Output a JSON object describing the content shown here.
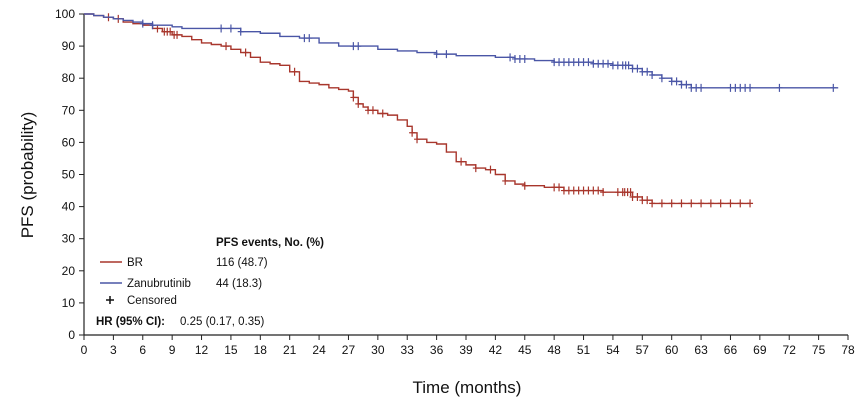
{
  "chart_data": {
    "type": "line",
    "title": "",
    "xlabel": "Time (months)",
    "ylabel": "PFS (probability)",
    "xlim": [
      0,
      78
    ],
    "ylim": [
      0,
      100
    ],
    "x_ticks": [
      0,
      3,
      6,
      9,
      12,
      15,
      18,
      21,
      24,
      27,
      30,
      33,
      36,
      39,
      42,
      45,
      48,
      51,
      54,
      57,
      60,
      63,
      66,
      69,
      72,
      75,
      78
    ],
    "y_ticks": [
      0,
      10,
      20,
      30,
      40,
      50,
      60,
      70,
      80,
      90,
      100
    ],
    "grid": false,
    "legend_position": "bottom-left",
    "legend_header": "PFS events, No. (%)",
    "censored_label": "Censored",
    "hr_label": "HR (95% CI):",
    "hr_value": "0.25 (0.17, 0.35)",
    "series": [
      {
        "name": "BR",
        "events": "116 (48.7)",
        "color": "#a8362c",
        "x": [
          0,
          1,
          2,
          3,
          4,
          5,
          6,
          7,
          8,
          9,
          10,
          11,
          12,
          13,
          14,
          15,
          16,
          17,
          18,
          19,
          20,
          21,
          22,
          23,
          24,
          25,
          26,
          27,
          27.5,
          28,
          28.5,
          29,
          30,
          31,
          32,
          33,
          33.5,
          34,
          35,
          36,
          37,
          38,
          39,
          40,
          41,
          42,
          43,
          44,
          45,
          46,
          47,
          48,
          49,
          50,
          51,
          52,
          53,
          54,
          55,
          56,
          57,
          58,
          59,
          60,
          62,
          64,
          66,
          68
        ],
        "y": [
          100,
          99.5,
          99,
          98.5,
          97.5,
          97,
          96.5,
          95.5,
          94.5,
          93.5,
          93,
          92,
          91,
          90.5,
          90,
          89,
          88,
          86.5,
          85,
          84.5,
          84,
          82,
          79,
          78.5,
          78,
          77,
          76.5,
          76,
          74,
          72,
          71,
          70,
          69,
          68.5,
          67,
          65,
          63,
          61,
          60,
          59.5,
          57,
          54,
          53,
          52,
          51.5,
          50,
          48,
          47,
          46.5,
          46.5,
          46,
          46,
          45,
          45,
          45,
          45,
          44.5,
          44.5,
          44.5,
          43,
          42,
          41,
          41,
          41,
          41,
          41,
          41,
          41
        ],
        "censored_x": [
          2.5,
          3.5,
          7.5,
          8.2,
          8.5,
          8.8,
          9.2,
          9.5,
          14.5,
          16.5,
          21.5,
          27.5,
          28,
          29,
          29.5,
          30.5,
          33.5,
          34,
          38.5,
          40,
          41.5,
          43,
          45,
          48,
          48.5,
          49,
          49.5,
          50,
          50.5,
          51,
          51.5,
          52,
          52.5,
          53,
          54.5,
          55,
          55.2,
          55.5,
          55.8,
          56,
          56.5,
          57,
          57.5,
          58,
          59,
          60,
          61,
          62,
          63,
          64,
          65,
          66,
          67,
          68
        ]
      },
      {
        "name": "Zanubrutinib",
        "events": "44 (18.3)",
        "color": "#4a56a6",
        "x": [
          0,
          1,
          2,
          3,
          4,
          5,
          6,
          7,
          8,
          9,
          10,
          12,
          14,
          16,
          18,
          20,
          22,
          24,
          26,
          28,
          30,
          32,
          34,
          36,
          38,
          40,
          42,
          44,
          46,
          48,
          50,
          52,
          54,
          56,
          57,
          58,
          59,
          60,
          61,
          62,
          64,
          66,
          68,
          70,
          72,
          74,
          76,
          77
        ],
        "y": [
          100,
          99.5,
          99,
          98.5,
          98,
          97.5,
          97,
          96.5,
          96.5,
          96,
          95.5,
          95.5,
          95.5,
          94.5,
          94,
          93,
          92.5,
          91,
          90,
          90,
          89,
          88.5,
          88,
          87.5,
          87,
          87,
          86.5,
          86,
          85.5,
          85,
          85,
          84.5,
          84,
          83,
          82,
          81,
          80,
          79,
          78,
          77,
          77,
          77,
          77,
          77,
          77,
          77,
          77,
          77
        ],
        "censored_x": [
          6,
          7,
          14,
          15,
          16,
          22.5,
          23,
          27.5,
          28,
          36,
          37,
          43.5,
          44,
          44.5,
          45,
          48,
          48.5,
          49,
          49.5,
          50,
          50.5,
          51,
          51.5,
          52,
          52.5,
          53,
          53.5,
          54,
          54.5,
          55,
          55.3,
          55.6,
          56,
          56.5,
          57,
          57.5,
          58,
          59,
          60,
          60.5,
          61,
          61.5,
          62,
          62.5,
          63,
          66,
          66.5,
          67,
          67.5,
          68,
          71,
          76.5
        ]
      }
    ]
  }
}
